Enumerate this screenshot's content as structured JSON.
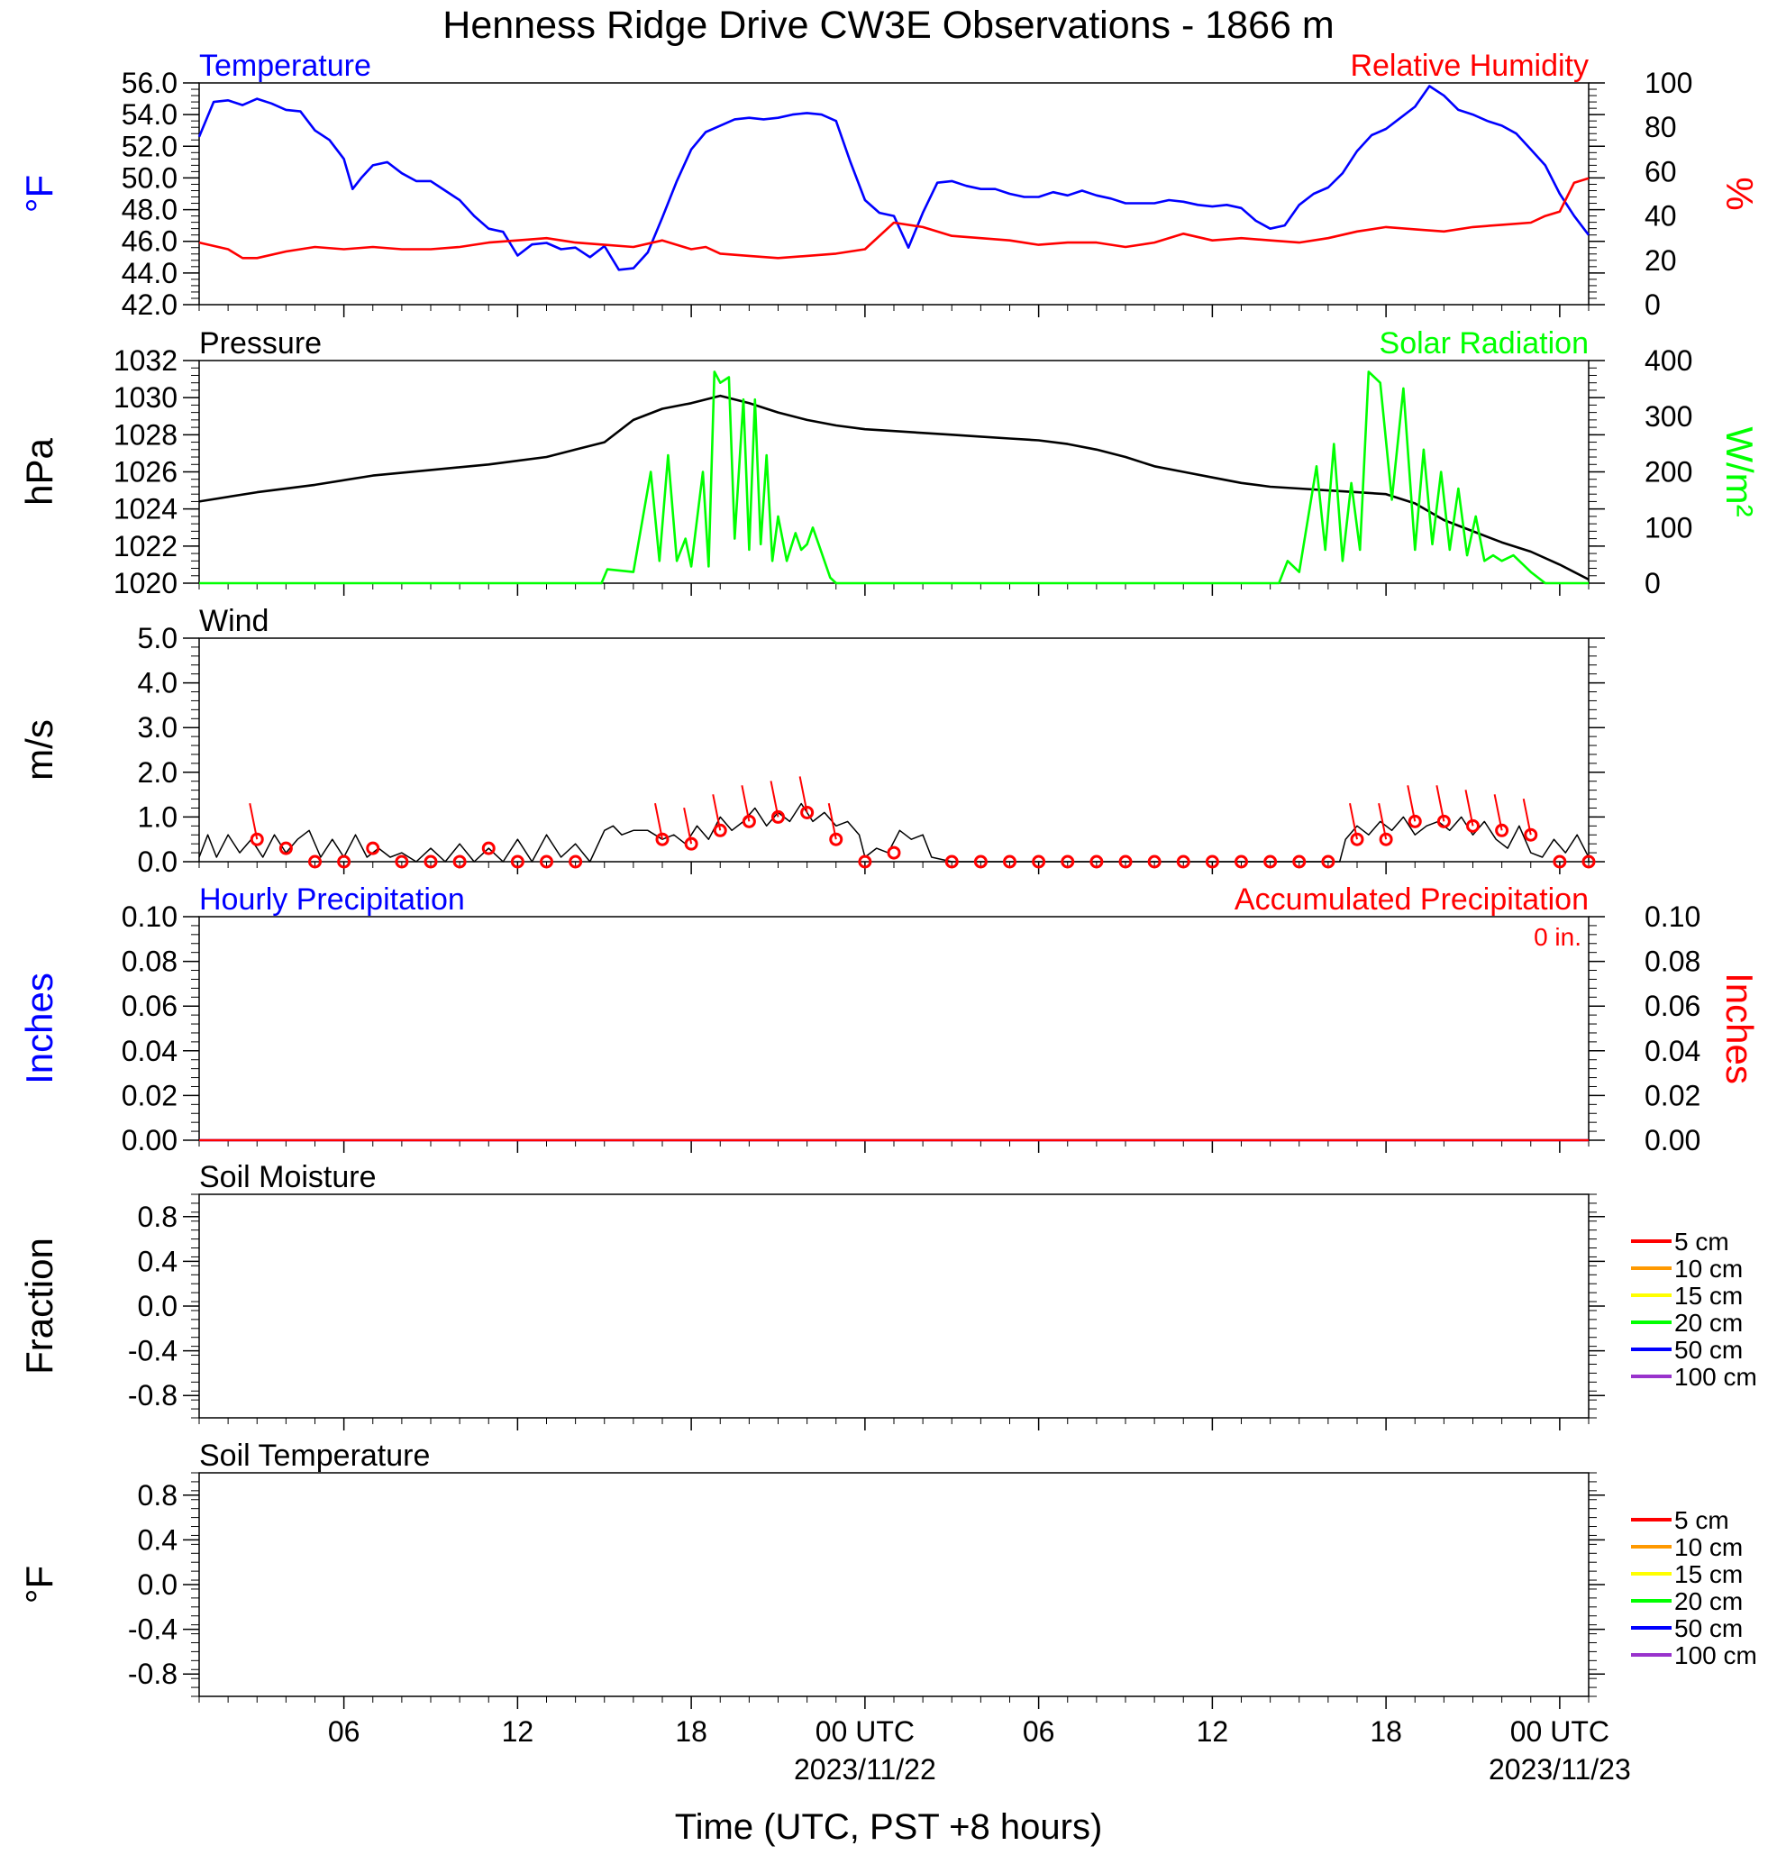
{
  "title": "Henness Ridge Drive CW3E Observations - 1866 m",
  "xaxis": {
    "title": "Time (UTC, PST +8 hours)",
    "range_hours": [
      0,
      48
    ],
    "ticks": [
      {
        "hour": 5,
        "label": "06",
        "date": ""
      },
      {
        "hour": 11,
        "label": "12",
        "date": ""
      },
      {
        "hour": 17,
        "label": "18",
        "date": ""
      },
      {
        "hour": 23,
        "label": "00 UTC",
        "date": "2023/11/22"
      },
      {
        "hour": 29,
        "label": "06",
        "date": ""
      },
      {
        "hour": 35,
        "label": "12",
        "date": ""
      },
      {
        "hour": 41,
        "label": "18",
        "date": ""
      },
      {
        "hour": 47,
        "label": "00 UTC",
        "date": "2023/11/23"
      }
    ]
  },
  "panels": {
    "temp": {
      "left_label": "Temperature",
      "right_label": "Relative Humidity",
      "left_unit": "°F",
      "right_unit": "%",
      "left_ticks": [
        "42.0",
        "44.0",
        "46.0",
        "48.0",
        "50.0",
        "52.0",
        "54.0",
        "56.0"
      ],
      "right_ticks": [
        "0",
        "20",
        "40",
        "60",
        "80",
        "100"
      ]
    },
    "pressure": {
      "left_label": "Pressure",
      "right_label": "Solar Radiation",
      "left_unit": "hPa",
      "right_unit": "W/m²",
      "left_ticks": [
        "1020",
        "1022",
        "1024",
        "1026",
        "1028",
        "1030",
        "1032"
      ],
      "right_ticks": [
        "0",
        "100",
        "200",
        "300",
        "400"
      ]
    },
    "wind": {
      "left_label": "Wind",
      "left_unit": "m/s",
      "left_ticks": [
        "0.0",
        "1.0",
        "2.0",
        "3.0",
        "4.0",
        "5.0"
      ]
    },
    "precip": {
      "left_label": "Hourly Precipitation",
      "right_label": "Accumulated Precipitation",
      "left_unit": "Inches",
      "right_unit": "Inches",
      "accum_text": "0 in.",
      "left_ticks": [
        "0.00",
        "0.02",
        "0.04",
        "0.06",
        "0.08",
        "0.10"
      ],
      "right_ticks": [
        "0.00",
        "0.02",
        "0.04",
        "0.06",
        "0.08",
        "0.10"
      ]
    },
    "soilm": {
      "left_label": "Soil Moisture",
      "left_unit": "Fraction",
      "left_ticks": [
        "-0.8",
        "-0.4",
        "0.0",
        "0.4",
        "0.8"
      ]
    },
    "soilt": {
      "left_label": "Soil Temperature",
      "left_unit": "°F",
      "left_ticks": [
        "-0.8",
        "-0.4",
        "0.0",
        "0.4",
        "0.8"
      ]
    }
  },
  "soil_legend": [
    {
      "label": "5 cm",
      "color": "#ff0000"
    },
    {
      "label": "10 cm",
      "color": "#ff9900"
    },
    {
      "label": "15 cm",
      "color": "#ffff00"
    },
    {
      "label": "20 cm",
      "color": "#00ff00"
    },
    {
      "label": "50 cm",
      "color": "#0000ff"
    },
    {
      "label": "100 cm",
      "color": "#9933cc"
    }
  ],
  "colors": {
    "temperature": "#0000ff",
    "humidity": "#ff0000",
    "pressure": "#000000",
    "solar": "#00ff00",
    "wind": "#000000",
    "wind_barb": "#ff0000",
    "hourly_precip": "#0000ff",
    "accum_precip": "#ff0000"
  },
  "chart_data": [
    {
      "type": "line",
      "panel": "temp",
      "name": "Temperature",
      "unit": "°F",
      "ylim": [
        42,
        56
      ],
      "x": [
        0,
        0.5,
        1,
        1.5,
        2,
        2.5,
        3,
        3.5,
        4,
        4.5,
        5,
        5.3,
        5.6,
        6,
        6.5,
        7,
        7.5,
        8,
        8.5,
        9,
        9.5,
        10,
        10.5,
        11,
        11.5,
        12,
        12.5,
        13,
        13.5,
        14,
        14.5,
        15,
        15.5,
        16,
        16.5,
        17,
        17.5,
        18,
        18.5,
        19,
        19.5,
        20,
        20.5,
        21,
        21.5,
        22,
        22.5,
        23,
        23.5,
        24,
        24.5,
        25,
        25.5,
        26,
        26.5,
        27,
        27.5,
        28,
        28.5,
        29,
        29.5,
        30,
        30.5,
        31,
        31.5,
        32,
        32.5,
        33,
        33.5,
        34,
        34.5,
        35,
        35.5,
        36,
        36.5,
        37,
        37.5,
        38,
        38.5,
        39,
        39.5,
        40,
        40.5,
        41,
        41.5,
        42,
        42.5,
        43,
        43.5,
        44,
        44.5,
        45,
        45.5,
        46,
        46.5,
        47,
        47.5,
        48
      ],
      "y": [
        52.6,
        54.8,
        54.9,
        54.6,
        55.0,
        54.7,
        54.3,
        54.2,
        53.0,
        52.4,
        51.2,
        49.3,
        50.0,
        50.8,
        51.0,
        50.3,
        49.8,
        49.8,
        49.2,
        48.6,
        47.6,
        46.8,
        46.6,
        45.1,
        45.8,
        45.9,
        45.5,
        45.6,
        45.0,
        45.7,
        44.2,
        44.3,
        45.3,
        47.5,
        49.8,
        51.8,
        52.9,
        53.3,
        53.7,
        53.8,
        53.7,
        53.8,
        54.0,
        54.1,
        54.0,
        53.6,
        51.0,
        48.6,
        47.8,
        47.6,
        45.6,
        47.8,
        49.7,
        49.8,
        49.5,
        49.3,
        49.3,
        49.0,
        48.8,
        48.8,
        49.1,
        48.9,
        49.2,
        48.9,
        48.7,
        48.4,
        48.4,
        48.4,
        48.6,
        48.5,
        48.3,
        48.2,
        48.3,
        48.1,
        47.3,
        46.8,
        47.0,
        48.3,
        49.0,
        49.4,
        50.3,
        51.7,
        52.7,
        53.1,
        53.8,
        54.5,
        55.8,
        55.2,
        54.3,
        54.0,
        53.6,
        53.3,
        52.8,
        51.8,
        50.8,
        49.0,
        47.6,
        46.4
      ],
      "note_ref": ""
    },
    {
      "type": "line",
      "panel": "temp",
      "name": "Relative Humidity",
      "unit": "%",
      "ylim": [
        0,
        100
      ],
      "x": [
        0,
        1,
        1.5,
        2,
        3,
        4,
        5,
        6,
        7,
        8,
        9,
        10,
        11,
        12,
        13,
        14,
        15,
        16,
        17,
        17.5,
        18,
        19,
        20,
        21,
        22,
        23,
        24,
        25,
        26,
        27,
        28,
        29,
        30,
        31,
        32,
        33,
        34,
        35,
        36,
        37,
        38,
        39,
        40,
        41,
        42,
        43,
        44,
        45,
        46,
        46.5,
        47,
        47.5,
        48
      ],
      "y": [
        28,
        25,
        21,
        21,
        24,
        26,
        25,
        26,
        25,
        25,
        26,
        28,
        29,
        30,
        28,
        27,
        26,
        29,
        25,
        26,
        23,
        22,
        21,
        22,
        23,
        25,
        37,
        35,
        31,
        30,
        29,
        27,
        28,
        28,
        26,
        28,
        32,
        29,
        30,
        29,
        28,
        30,
        33,
        35,
        34,
        33,
        35,
        36,
        37,
        40,
        42,
        55,
        57
      ]
    },
    {
      "type": "line",
      "panel": "pressure",
      "name": "Pressure",
      "unit": "hPa",
      "ylim": [
        1020,
        1032
      ],
      "x": [
        0,
        2,
        4,
        6,
        8,
        10,
        12,
        13,
        14,
        15,
        16,
        17,
        18,
        19,
        20,
        21,
        22,
        23,
        24,
        25,
        26,
        27,
        28,
        29,
        30,
        31,
        32,
        33,
        34,
        35,
        36,
        37,
        38,
        39,
        40,
        41,
        42,
        43,
        44,
        45,
        46,
        47,
        48
      ],
      "y": [
        1024.4,
        1024.9,
        1025.3,
        1025.8,
        1026.1,
        1026.4,
        1026.8,
        1027.2,
        1027.6,
        1028.8,
        1029.4,
        1029.7,
        1030.1,
        1029.7,
        1029.2,
        1028.8,
        1028.5,
        1028.3,
        1028.2,
        1028.1,
        1028.0,
        1027.9,
        1027.8,
        1027.7,
        1027.5,
        1027.2,
        1026.8,
        1026.3,
        1026.0,
        1025.7,
        1025.4,
        1025.2,
        1025.1,
        1025.0,
        1024.9,
        1024.8,
        1024.3,
        1023.4,
        1022.8,
        1022.2,
        1021.7,
        1021.0,
        1020.2
      ]
    },
    {
      "type": "line",
      "panel": "pressure",
      "name": "Solar Radiation",
      "unit": "W/m²",
      "ylim": [
        0,
        400
      ],
      "x": [
        0,
        13.9,
        14.1,
        15,
        15.6,
        15.9,
        16.2,
        16.5,
        16.8,
        17,
        17.4,
        17.6,
        17.8,
        18,
        18.3,
        18.5,
        18.8,
        19.0,
        19.2,
        19.4,
        19.6,
        19.8,
        20.0,
        20.3,
        20.6,
        20.8,
        21.0,
        21.2,
        21.4,
        21.6,
        21.8,
        22.0,
        22.3,
        22.6,
        23.0,
        23.5,
        24,
        37.3,
        37.6,
        38,
        38.6,
        38.9,
        39.2,
        39.5,
        39.8,
        40.1,
        40.4,
        40.8,
        41.2,
        41.6,
        42.0,
        42.3,
        42.6,
        42.9,
        43.2,
        43.5,
        43.8,
        44.1,
        44.4,
        44.7,
        45.0,
        45.4,
        46.0,
        46.5,
        46.9,
        47.3,
        48
      ],
      "y": [
        0,
        0,
        25,
        20,
        200,
        40,
        230,
        40,
        80,
        30,
        200,
        30,
        380,
        360,
        370,
        80,
        330,
        60,
        330,
        70,
        230,
        40,
        120,
        40,
        90,
        60,
        70,
        100,
        70,
        40,
        10,
        0,
        0,
        0,
        0,
        0,
        0,
        0,
        40,
        20,
        210,
        60,
        250,
        40,
        180,
        60,
        380,
        360,
        150,
        350,
        60,
        240,
        70,
        200,
        60,
        170,
        50,
        120,
        40,
        50,
        40,
        50,
        20,
        0,
        0,
        0,
        0
      ]
    },
    {
      "type": "line",
      "panel": "wind",
      "name": "Wind",
      "unit": "m/s",
      "ylim": [
        0,
        5
      ],
      "x": [
        0,
        0.3,
        0.6,
        1,
        1.4,
        1.8,
        2.2,
        2.6,
        3,
        3.4,
        3.8,
        4.2,
        4.6,
        5,
        5.4,
        5.8,
        6.2,
        6.6,
        7,
        7.5,
        8,
        8.5,
        9,
        9.5,
        10,
        10.5,
        11,
        11.5,
        12,
        12.5,
        13,
        13.5,
        14,
        14.3,
        14.6,
        15,
        15.5,
        16,
        16.4,
        16.8,
        17.2,
        17.6,
        18,
        18.4,
        18.8,
        19.2,
        19.6,
        20,
        20.4,
        20.8,
        21.2,
        21.6,
        22,
        22.4,
        22.8,
        23,
        23.4,
        23.8,
        24.2,
        24.6,
        25,
        25.3,
        26,
        30,
        35,
        39.4,
        39.6,
        40,
        40.4,
        40.8,
        41.2,
        41.6,
        42,
        42.4,
        42.8,
        43.2,
        43.6,
        44,
        44.4,
        44.8,
        45.2,
        45.6,
        46,
        46.4,
        46.8,
        47.2,
        47.6,
        48
      ],
      "y": [
        0.1,
        0.6,
        0.1,
        0.6,
        0.2,
        0.5,
        0.1,
        0.6,
        0.2,
        0.5,
        0.7,
        0.1,
        0.5,
        0.1,
        0.6,
        0.1,
        0.3,
        0.1,
        0.2,
        0,
        0.3,
        0,
        0.4,
        0,
        0.3,
        0,
        0.5,
        0,
        0.6,
        0.1,
        0.4,
        0,
        0.7,
        0.8,
        0.6,
        0.7,
        0.7,
        0.5,
        0.6,
        0.4,
        0.8,
        0.5,
        1.0,
        0.7,
        0.9,
        1.2,
        0.8,
        1.1,
        0.9,
        1.3,
        0.9,
        1.1,
        0.8,
        0.9,
        0.6,
        0.1,
        0.3,
        0.2,
        0.7,
        0.5,
        0.6,
        0.1,
        0,
        0,
        0,
        0,
        0.5,
        0.8,
        0.6,
        0.9,
        0.7,
        1.0,
        0.6,
        0.8,
        0.9,
        0.7,
        1.0,
        0.6,
        0.9,
        0.5,
        0.3,
        0.8,
        0.2,
        0.1,
        0.5,
        0.2,
        0.6,
        0.1
      ]
    },
    {
      "type": "scatter",
      "panel": "wind",
      "name": "Wind direction barbs",
      "unit": "m/s",
      "ylim": [
        0,
        5
      ],
      "x": [
        2,
        3,
        4,
        5,
        6,
        7,
        8,
        9,
        10,
        11,
        12,
        13,
        16,
        17,
        18,
        19,
        20,
        21,
        22,
        23,
        24,
        26,
        27,
        28,
        29,
        30,
        31,
        32,
        33,
        34,
        35,
        36,
        37,
        38,
        39,
        40,
        41,
        42,
        43,
        44,
        45,
        46,
        47,
        48
      ],
      "y": [
        0.5,
        0.3,
        0,
        0,
        0.3,
        0,
        0,
        0,
        0.3,
        0,
        0,
        0,
        0.5,
        0.4,
        0.7,
        0.9,
        1.0,
        1.1,
        0.5,
        0,
        0.2,
        0,
        0,
        0,
        0,
        0,
        0,
        0,
        0,
        0,
        0,
        0,
        0,
        0,
        0,
        0.5,
        0.5,
        0.9,
        0.9,
        0.8,
        0.7,
        0.6,
        0,
        0
      ]
    },
    {
      "type": "line",
      "panel": "precip",
      "name": "Hourly Precipitation",
      "unit": "in",
      "ylim": [
        0,
        0.1
      ],
      "x": [
        0,
        48
      ],
      "y": [
        0,
        0
      ]
    },
    {
      "type": "line",
      "panel": "precip",
      "name": "Accumulated Precipitation",
      "unit": "in",
      "ylim": [
        0,
        0.1
      ],
      "x": [
        0,
        48
      ],
      "y": [
        0,
        0
      ]
    }
  ]
}
